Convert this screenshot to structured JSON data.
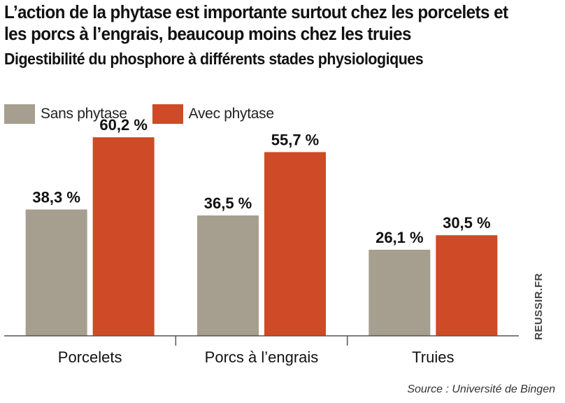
{
  "chart_data": {
    "type": "bar",
    "title": "L’action de la phytase est importante surtout chez les porcelets et les porcs à l’engrais, beaucoup moins chez les truies",
    "subtitle": "Digestibilité du phosphore à différents stades physiologiques",
    "categories": [
      "Porcelets",
      "Porcs à l’engrais",
      "Truies"
    ],
    "series": [
      {
        "name": "Sans phytase",
        "color": "#a69e8e",
        "values": [
          38.3,
          36.5,
          26.1
        ],
        "labels": [
          "38,3 %",
          "36,5 %",
          "26,1 %"
        ]
      },
      {
        "name": "Avec phytase",
        "color": "#cf4a26",
        "values": [
          60.2,
          55.7,
          30.5
        ],
        "labels": [
          "60,2 %",
          "55,7 %",
          "30,5 %"
        ]
      }
    ],
    "ylim": [
      0,
      70
    ],
    "grid": false,
    "legend_position": "top-left",
    "source": "Source : Université de Bingen",
    "watermark": "REUSSIR.FR"
  }
}
